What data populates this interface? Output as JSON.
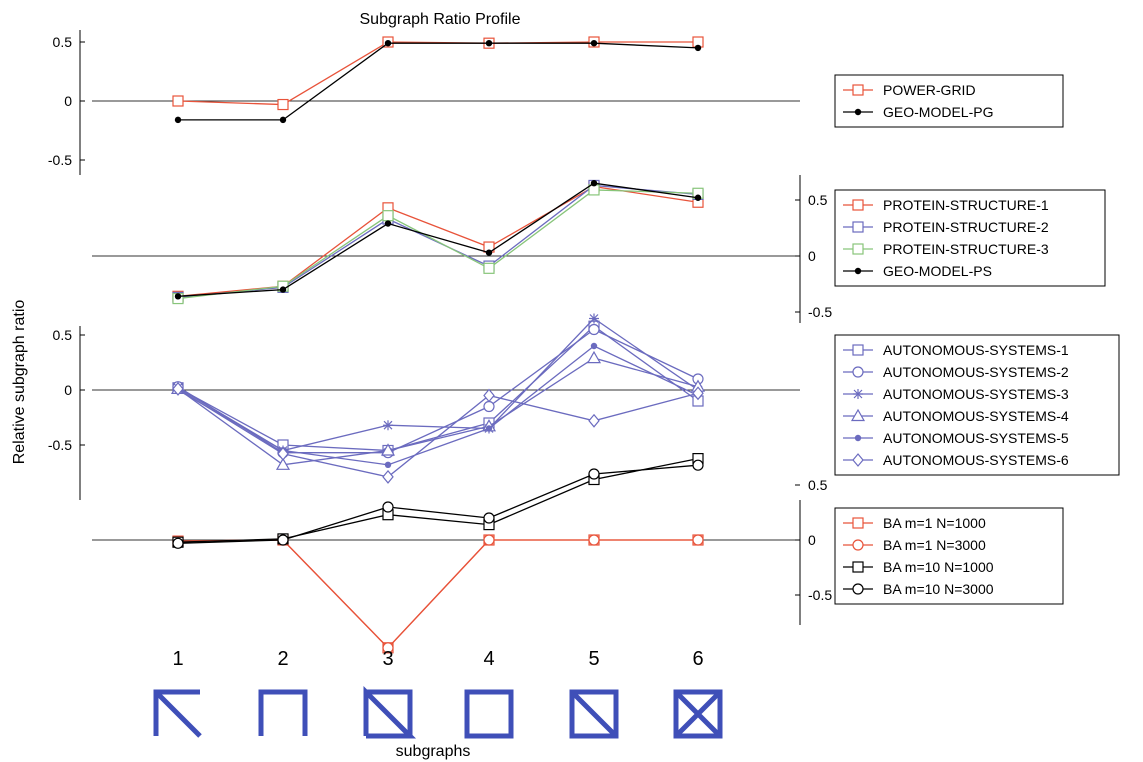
{
  "chart_data": {
    "type": "line",
    "title": "Subgraph Ratio Profile",
    "ylabel": "Relative subgraph ratio",
    "xlabel": "subgraphs",
    "categories": [
      "1",
      "2",
      "3",
      "4",
      "5",
      "6"
    ],
    "grid": false,
    "legend_position": "right",
    "panels": [
      {
        "ylim": [
          -0.6,
          0.55
        ],
        "yticks": [
          0.5,
          0,
          -0.5
        ],
        "ytick_labels": [
          "0.5",
          "0",
          "-0.5"
        ],
        "ytick_side": "left",
        "series": [
          {
            "name": "POWER-GRID",
            "color": "#e8533a",
            "marker": "square-open",
            "values": [
              0.0,
              -0.03,
              0.5,
              0.49,
              0.5,
              0.5
            ]
          },
          {
            "name": "GEO-MODEL-PG",
            "color": "#000000",
            "marker": "dot",
            "values": [
              -0.16,
              -0.16,
              0.49,
              0.49,
              0.49,
              0.45
            ]
          }
        ]
      },
      {
        "ylim": [
          -0.6,
          0.7
        ],
        "yticks": [
          0.5,
          0,
          -0.5
        ],
        "ytick_labels": [
          "0.5",
          "0",
          "-0.5"
        ],
        "ytick_side": "right",
        "series": [
          {
            "name": "PROTEIN-STRUCTURE-1",
            "color": "#e8533a",
            "marker": "square-open",
            "values": [
              -0.36,
              -0.27,
              0.43,
              0.08,
              0.62,
              0.48
            ]
          },
          {
            "name": "PROTEIN-STRUCTURE-2",
            "color": "#6b6bbf",
            "marker": "square-open",
            "values": [
              -0.37,
              -0.28,
              0.33,
              -0.09,
              0.63,
              0.55
            ]
          },
          {
            "name": "PROTEIN-STRUCTURE-3",
            "color": "#88c57a",
            "marker": "square-open",
            "values": [
              -0.38,
              -0.27,
              0.36,
              -0.11,
              0.59,
              0.56
            ]
          },
          {
            "name": "GEO-MODEL-PS",
            "color": "#000000",
            "marker": "dot",
            "values": [
              -0.36,
              -0.3,
              0.29,
              0.03,
              0.65,
              0.52
            ]
          }
        ]
      },
      {
        "ylim": [
          -0.95,
          0.7
        ],
        "yticks": [
          0.5,
          0,
          -0.5
        ],
        "ytick_labels": [
          "0.5",
          "0",
          "-0.5"
        ],
        "ytick_side": "left",
        "series": [
          {
            "name": "AUTONOMOUS-SYSTEMS-1",
            "color": "#6b6bbf",
            "marker": "square-open",
            "values": [
              0.02,
              -0.5,
              -0.55,
              -0.3,
              0.58,
              -0.1
            ]
          },
          {
            "name": "AUTONOMOUS-SYSTEMS-2",
            "color": "#6b6bbf",
            "marker": "circle-open",
            "values": [
              0.03,
              -0.57,
              -0.57,
              -0.15,
              0.55,
              0.1
            ]
          },
          {
            "name": "AUTONOMOUS-SYSTEMS-3",
            "color": "#6b6bbf",
            "marker": "star",
            "values": [
              0.02,
              -0.55,
              -0.32,
              -0.35,
              0.65,
              0.0
            ]
          },
          {
            "name": "AUTONOMOUS-SYSTEMS-4",
            "color": "#6b6bbf",
            "marker": "triangle-open",
            "values": [
              0.01,
              -0.68,
              -0.55,
              -0.33,
              0.29,
              0.03
            ]
          },
          {
            "name": "AUTONOMOUS-SYSTEMS-5",
            "color": "#6b6bbf",
            "marker": "dot",
            "values": [
              0.0,
              -0.55,
              -0.68,
              -0.35,
              0.4,
              -0.05
            ]
          },
          {
            "name": "AUTONOMOUS-SYSTEMS-6",
            "color": "#6b6bbf",
            "marker": "diamond-open",
            "values": [
              0.01,
              -0.58,
              -0.79,
              -0.05,
              -0.28,
              -0.03
            ]
          }
        ]
      },
      {
        "ylim": [
          -1.05,
          0.85
        ],
        "yticks": [
          0.5,
          0,
          -0.5
        ],
        "ytick_labels": [
          "0.5",
          "0",
          "-0.5"
        ],
        "ytick_side": "right",
        "series": [
          {
            "name": "BA m=1 N=1000",
            "color": "#e8533a",
            "marker": "square-open",
            "values": [
              -0.01,
              0.0,
              -0.98,
              0.0,
              0.0,
              0.0
            ]
          },
          {
            "name": "BA m=1 N=3000",
            "color": "#e8533a",
            "marker": "circle-open",
            "values": [
              -0.01,
              0.0,
              -0.98,
              0.0,
              0.0,
              0.0
            ]
          },
          {
            "name": "BA m=10 N=1000",
            "color": "#000000",
            "marker": "square-open",
            "values": [
              -0.02,
              0.01,
              0.23,
              0.14,
              0.55,
              0.74
            ]
          },
          {
            "name": "BA m=10 N=3000",
            "color": "#000000",
            "marker": "circle-open",
            "values": [
              -0.03,
              0.0,
              0.3,
              0.2,
              0.6,
              0.68
            ]
          }
        ]
      }
    ]
  }
}
